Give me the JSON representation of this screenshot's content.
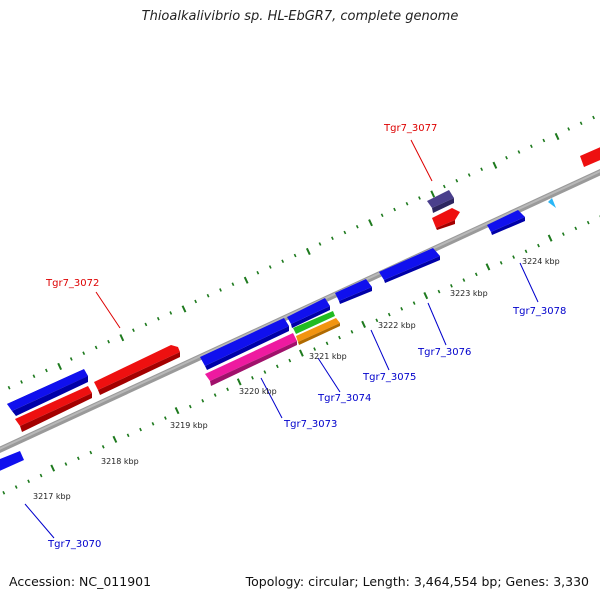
{
  "header": {
    "title": "Thioalkalivibrio sp. HL-EbGR7, complete genome"
  },
  "footer": {
    "accession": "Accession: NC_011901",
    "info": "Topology: circular; Length: 3,464,554 bp; Genes: 3,330"
  },
  "colors": {
    "backbone": "#8e8e8e",
    "tick": "#1e7a1e",
    "label_forward": "#dd0000",
    "label_reverse": "#0000cc",
    "gene_blue": "#1010ee",
    "gene_red": "#ee1010",
    "gene_pink": "#ee1aa0",
    "gene_green": "#22bb22",
    "gene_orange": "#f29410",
    "gene_purple": "#4a3f8c",
    "marker": "#29b6f6"
  },
  "kbp_ticks": [
    "3217 kbp",
    "3218 kbp",
    "3219 kbp",
    "3220 kbp",
    "3221 kbp",
    "3222 kbp",
    "3223 kbp",
    "3224 kbp"
  ],
  "gene_labels": {
    "forward": [
      "Tgr7_3072",
      "Tgr7_3077"
    ],
    "reverse": [
      "Tgr7_3070",
      "Tgr7_3073",
      "Tgr7_3074",
      "Tgr7_3075",
      "Tgr7_3076",
      "Tgr7_3078"
    ]
  },
  "features": [
    {
      "id": "f1",
      "track": "blue-top",
      "color": "gene_blue"
    },
    {
      "id": "f2",
      "track": "red-1",
      "color": "gene_red"
    },
    {
      "id": "f3",
      "track": "red-2",
      "color": "gene_red"
    },
    {
      "id": "f4",
      "track": "blue-mid",
      "color": "gene_blue"
    },
    {
      "id": "f5",
      "track": "pink",
      "color": "gene_pink"
    },
    {
      "id": "f6",
      "track": "green",
      "color": "gene_green"
    },
    {
      "id": "f7",
      "track": "orange",
      "color": "gene_orange"
    },
    {
      "id": "f8",
      "track": "purple",
      "color": "gene_purple"
    },
    {
      "id": "f9",
      "track": "red-small",
      "color": "gene_red"
    },
    {
      "id": "f10",
      "track": "blue-right",
      "color": "gene_blue"
    },
    {
      "id": "f11",
      "track": "red-edge",
      "color": "gene_red"
    }
  ]
}
